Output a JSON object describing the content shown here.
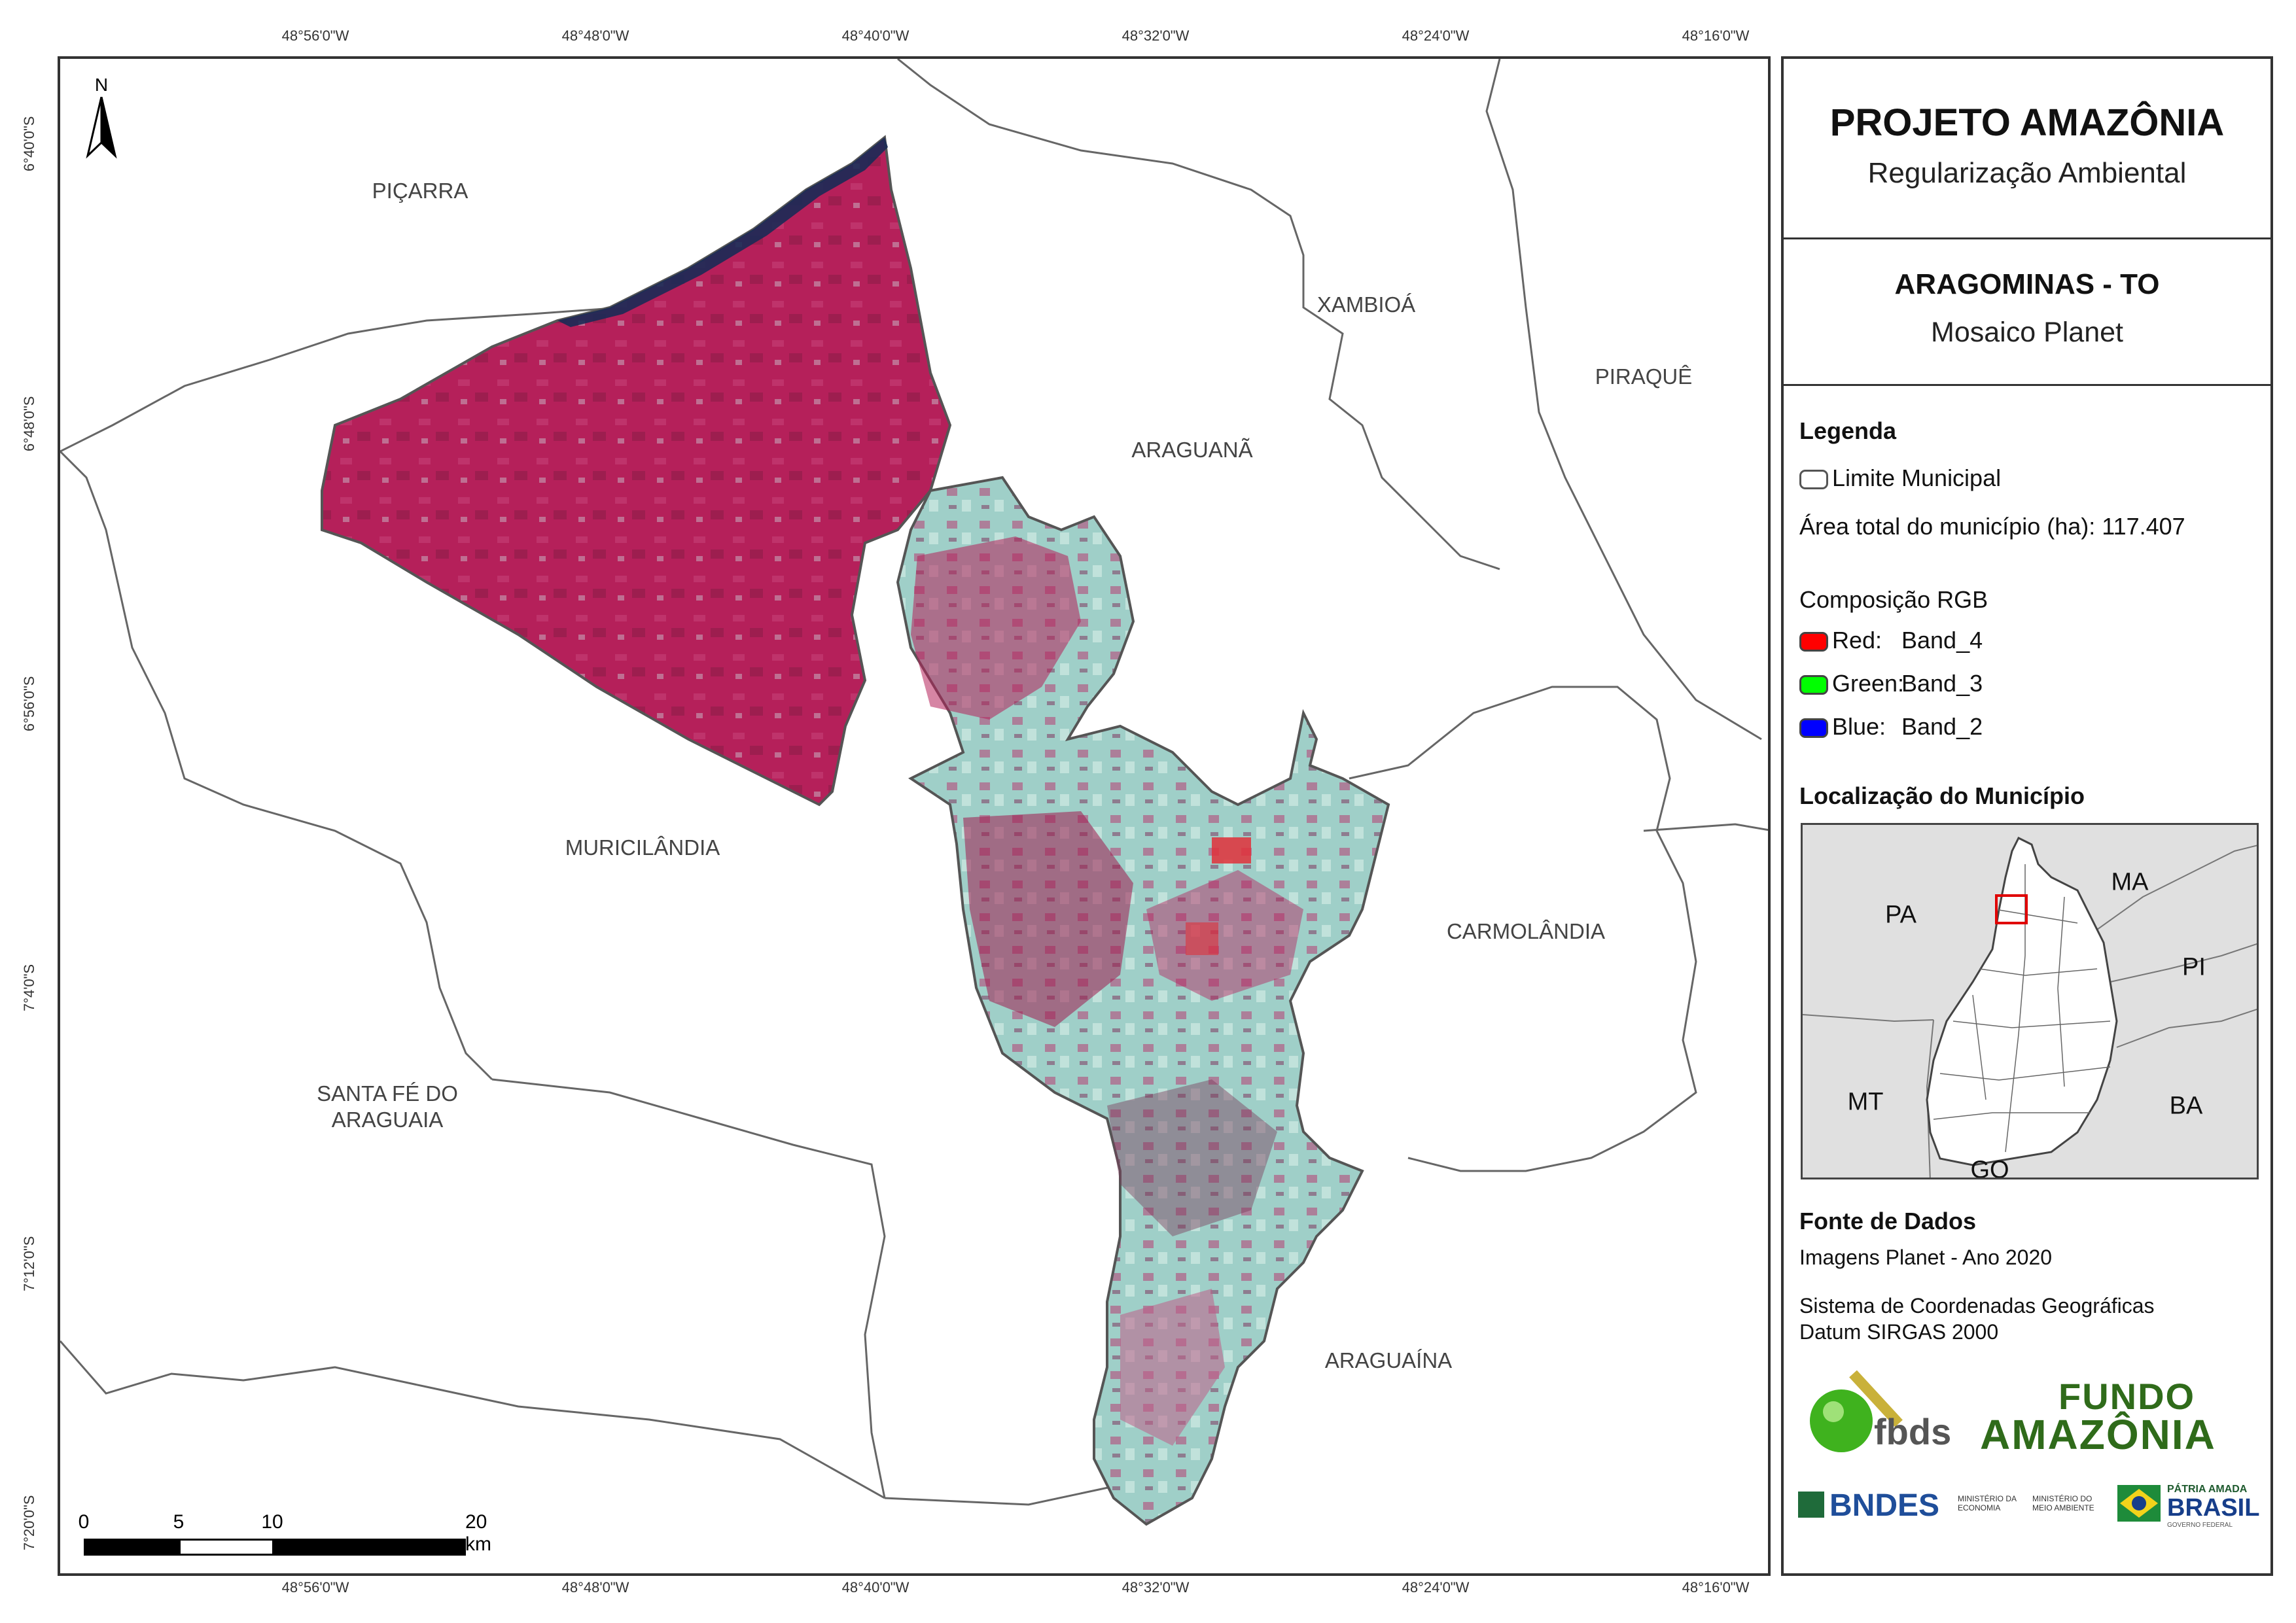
{
  "coords": {
    "top": [
      "48°56'0\"W",
      "48°48'0\"W",
      "48°40'0\"W",
      "48°32'0\"W",
      "48°24'0\"W",
      "48°16'0\"W"
    ],
    "bottom": [
      "48°56'0\"W",
      "48°48'0\"W",
      "48°40'0\"W",
      "48°32'0\"W",
      "48°24'0\"W",
      "48°16'0\"W"
    ],
    "left": [
      "6°40'0\"S",
      "6°48'0\"S",
      "6°56'0\"S",
      "7°4'0\"S",
      "7°12'0\"S",
      "7°20'0\"S"
    ]
  },
  "map": {
    "north": "N",
    "municipalities": {
      "picarra": "PIÇARRA",
      "xambioa": "XAMBIOÁ",
      "piraque": "PIRAQUÊ",
      "araguana": "ARAGUANÃ",
      "muricilandia": "MURICILÂNDIA",
      "carmolandia": "CARMOLÂNDIA",
      "santa_fe_line1": "SANTA FÉ DO",
      "santa_fe_line2": "ARAGUAIA",
      "araguaina": "ARAGUAÍNA"
    },
    "scale": {
      "labels": [
        "0",
        "5",
        "10",
        "20 km"
      ]
    },
    "colors": {
      "vegetation": "#b5205a",
      "exposed_soil": "#9ed9c8",
      "border": "#555555"
    }
  },
  "panel": {
    "title": "PROJETO AMAZÔNIA",
    "subtitle": "Regularização Ambiental",
    "municipality_title": "ARAGOMINAS - TO",
    "municipality_sub": "Mosaico Planet",
    "legend_heading": "Legenda",
    "legend_limit": "Limite Municipal",
    "area_total": "Área total do município (ha): 117.407",
    "rgb_heading": "Composição RGB",
    "red_label": "Red:",
    "red_band": "Band_4",
    "green_label": "Green:",
    "green_band": "Band_3",
    "blue_label": "Blue:",
    "blue_band": "Band_2",
    "location_heading": "Localização do Município",
    "inset_labels": {
      "pa": "PA",
      "ma": "MA",
      "pi": "PI",
      "mt": "MT",
      "ba": "BA",
      "go": "GO"
    },
    "source_heading": "Fonte de Dados",
    "source_1": "Imagens Planet - Ano 2020",
    "source_2": "Sistema de Coordenadas Geográficas",
    "source_3": "Datum SIRGAS 2000",
    "logos": {
      "fbds": "fbds",
      "fundo_line1": "FUNDO",
      "fundo_line2": "AMAZÔNIA",
      "bndes": "BNDES",
      "min_econ_1": "MINISTÉRIO DA",
      "min_econ_2": "ECONOMIA",
      "min_amb_1": "MINISTÉRIO DO",
      "min_amb_2": "MEIO AMBIENTE",
      "patria_1": "PÁTRIA AMADA",
      "patria_2": "BRASIL",
      "patria_3": "GOVERNO FEDERAL"
    },
    "swatch_colors": {
      "red": "#ff0000",
      "green": "#00ff00",
      "blue": "#0000ff"
    }
  }
}
